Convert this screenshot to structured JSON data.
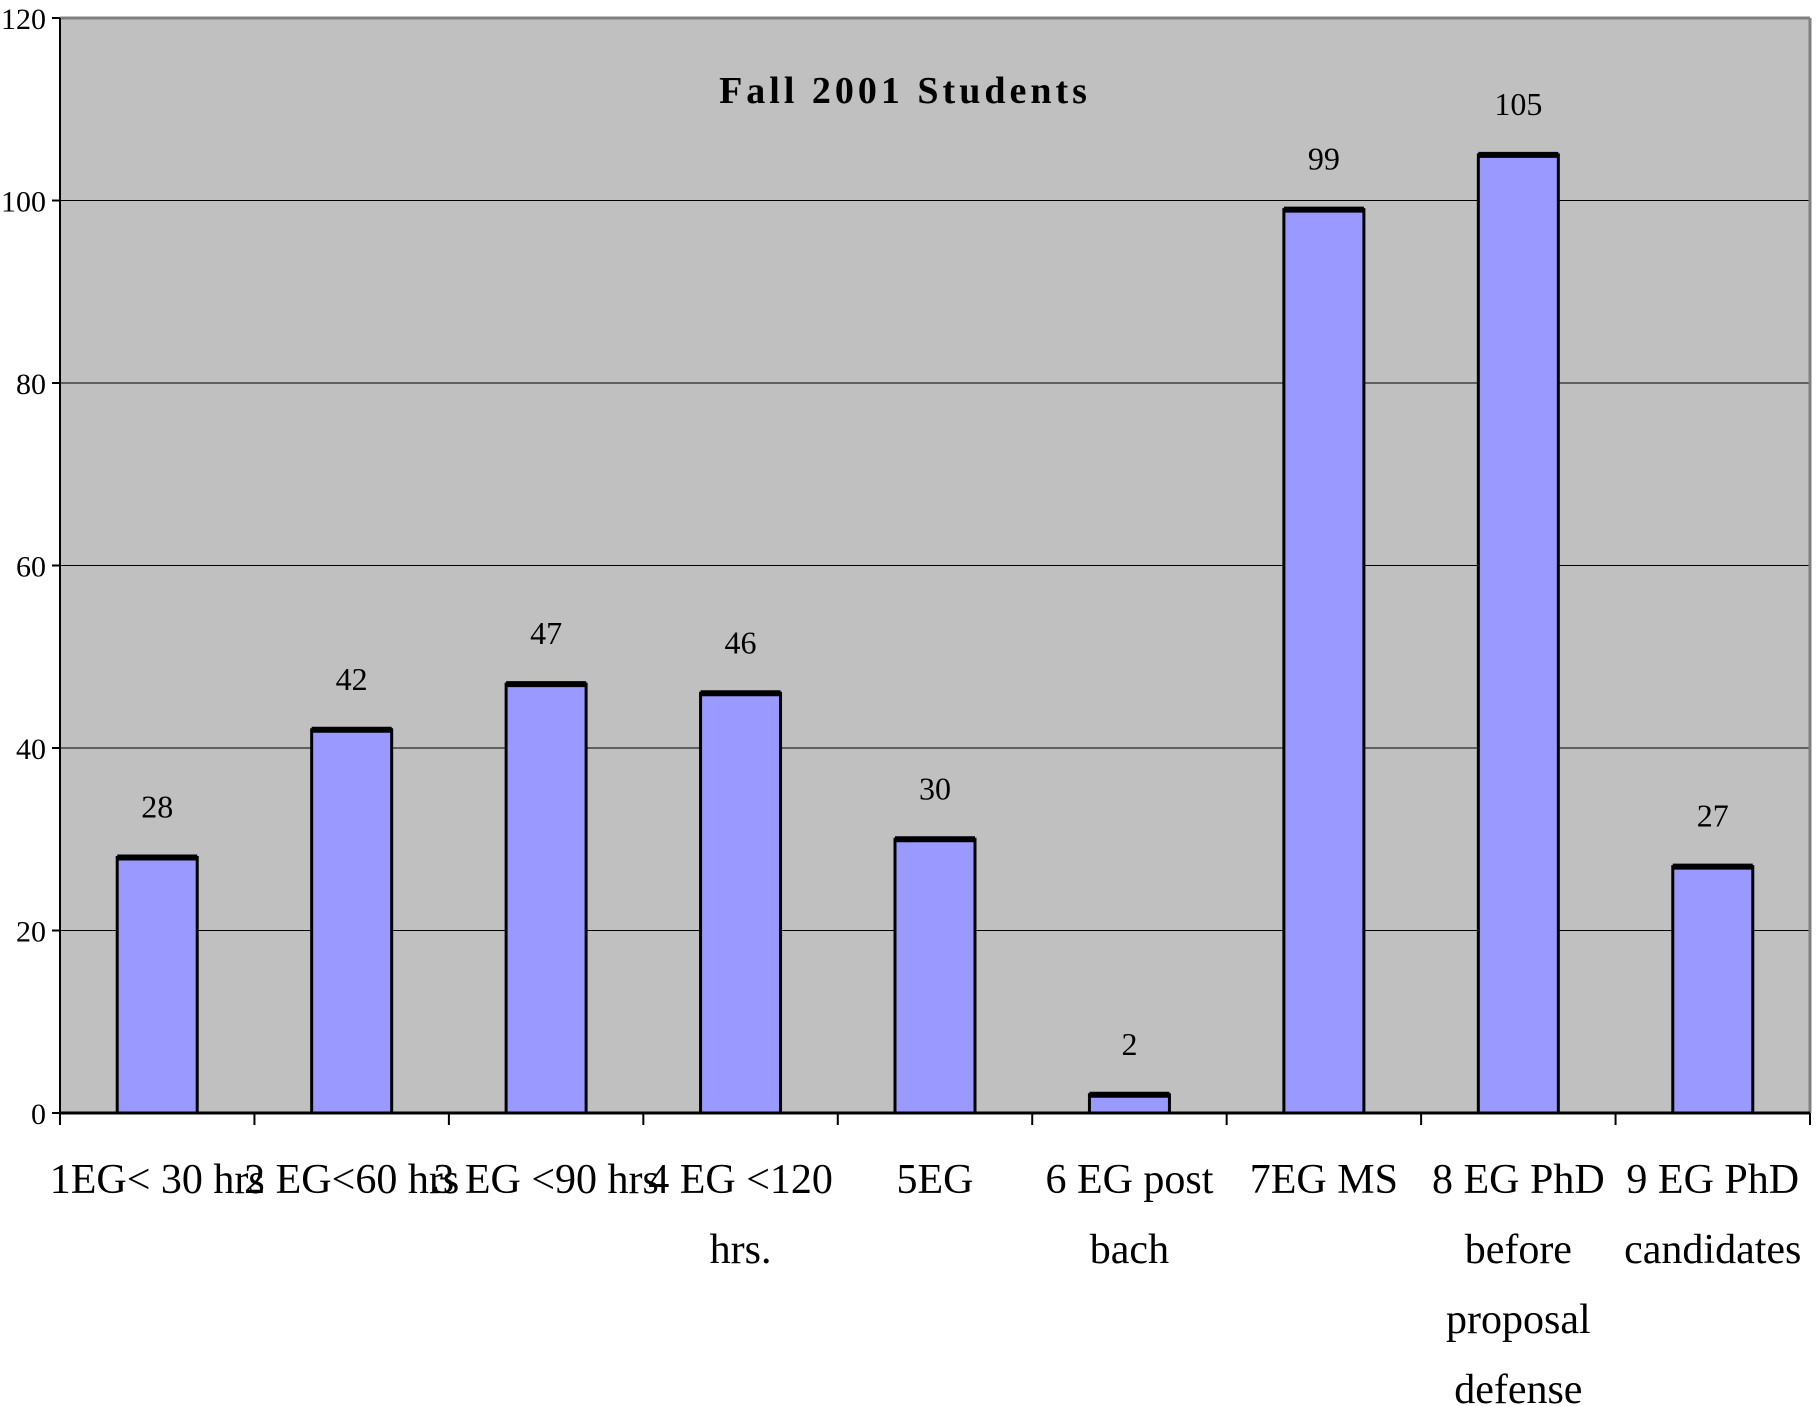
{
  "chart_data": {
    "type": "bar",
    "title": "Fall 2001 Students",
    "xlabel": "",
    "ylabel": "",
    "categories": [
      "1EG< 30 hrs",
      "2 EG<60 hrs",
      "3 EG <90 hrs",
      "4 EG <120 hrs.",
      "5EG",
      "6 EG post bach",
      "7EG MS",
      "8 EG PhD before proposal defense",
      "9 EG PhD candidates"
    ],
    "category_lines": [
      [
        "1EG< 30 hrs"
      ],
      [
        "2 EG<60 hrs"
      ],
      [
        "3 EG <90 hrs"
      ],
      [
        "4 EG <120",
        "hrs."
      ],
      [
        "5EG"
      ],
      [
        "6 EG post",
        "bach"
      ],
      [
        "7EG MS"
      ],
      [
        "8 EG PhD",
        "before",
        "proposal",
        "defense"
      ],
      [
        "9 EG PhD",
        "candidates"
      ]
    ],
    "values": [
      28,
      42,
      47,
      46,
      30,
      2,
      99,
      105,
      27
    ],
    "data_labels": [
      "28",
      "42",
      "47",
      "46",
      "30",
      "2",
      "99",
      "105",
      "27"
    ],
    "ylim": [
      0,
      120
    ],
    "yticks": [
      0,
      20,
      40,
      60,
      80,
      100,
      120
    ],
    "grid": true,
    "legend": "none",
    "colors": {
      "plot_background": "#c0c0c0",
      "bar_fill": "#9999ff",
      "bar_stroke": "#000000",
      "gridline": "#000000"
    }
  }
}
